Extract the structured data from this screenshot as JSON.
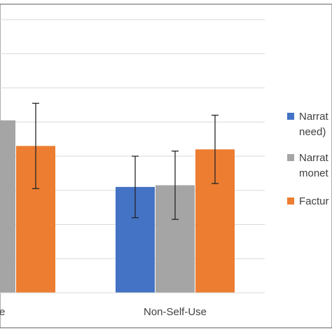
{
  "chart_data": {
    "type": "bar",
    "title": "",
    "xlabel": "",
    "ylabel": "",
    "categories": [
      "Use",
      "Non-Self-Use"
    ],
    "ylim": [
      0,
      8
    ],
    "grid": true,
    "legend_position": "right",
    "series": [
      {
        "name": "Narrat need)",
        "legend_lines": [
          "Narrat",
          "need)"
        ],
        "color": "#4472C4",
        "values": [
          null,
          3.1
        ],
        "errors": [
          null,
          0.9
        ]
      },
      {
        "name": "Narrat monet",
        "legend_lines": [
          "Narrat",
          "monet"
        ],
        "color": "#A5A5A5",
        "values": [
          5.05,
          3.15
        ],
        "errors": [
          null,
          1.0
        ]
      },
      {
        "name": "Factur",
        "legend_lines": [
          "Factur"
        ],
        "color": "#ED7D31",
        "values": [
          4.3,
          4.2
        ],
        "errors": [
          1.25,
          1.0
        ]
      }
    ]
  }
}
